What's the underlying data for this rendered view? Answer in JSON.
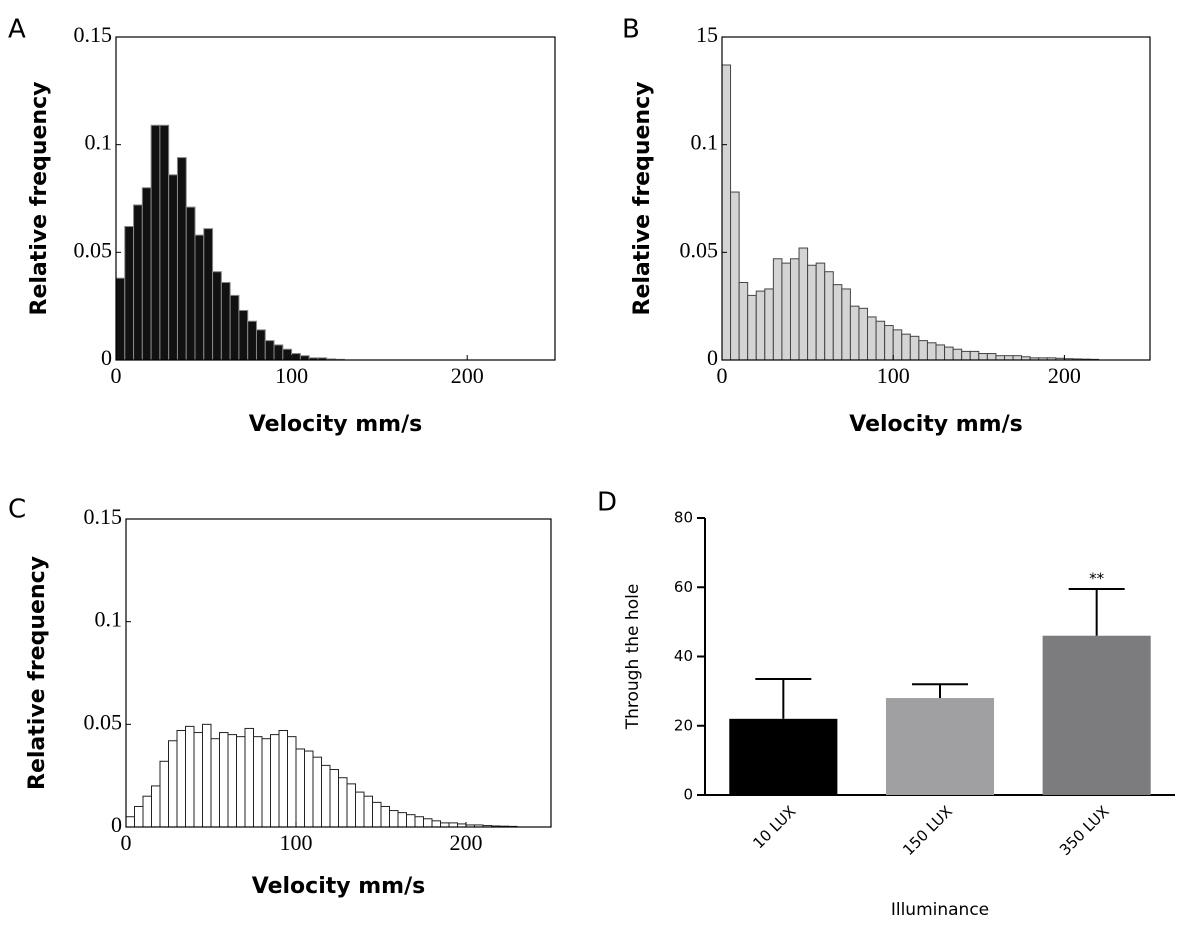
{
  "chart_data": [
    {
      "type": "histogram",
      "panel_label": "A",
      "xlabel": "Velocity mm/s",
      "ylabel": "Relative frequency",
      "bins": [
        0,
        5,
        10,
        15,
        20,
        25,
        30,
        35,
        40,
        45,
        50,
        55,
        60,
        65,
        70,
        75,
        80,
        85,
        90,
        95,
        100,
        105,
        110,
        115,
        120,
        125,
        130
      ],
      "values": [
        0.038,
        0.062,
        0.072,
        0.08,
        0.109,
        0.109,
        0.086,
        0.094,
        0.071,
        0.058,
        0.061,
        0.041,
        0.036,
        0.03,
        0.023,
        0.018,
        0.014,
        0.009,
        0.007,
        0.005,
        0.003,
        0.002,
        0.001,
        0.001,
        0.0005,
        0.0003
      ],
      "color": "#111111",
      "edgecolor": "#888888",
      "xlim": [
        0,
        250
      ],
      "ylim": [
        0,
        0.15
      ],
      "xticks": [
        0,
        100,
        200
      ],
      "yticks": [
        0,
        0.05,
        0.1,
        0.15
      ]
    },
    {
      "type": "histogram",
      "panel_label": "B",
      "xlabel": "Velocity mm/s",
      "ylabel": "Relative frequency",
      "bins": [
        0,
        5,
        10,
        15,
        20,
        25,
        30,
        35,
        40,
        45,
        50,
        55,
        60,
        65,
        70,
        75,
        80,
        85,
        90,
        95,
        100,
        105,
        110,
        115,
        120,
        125,
        130,
        135,
        140,
        145,
        150,
        155,
        160,
        165,
        170,
        175,
        180,
        185,
        190,
        195,
        200,
        205,
        210,
        215,
        220
      ],
      "values": [
        0.137,
        0.078,
        0.036,
        0.03,
        0.032,
        0.033,
        0.047,
        0.045,
        0.047,
        0.052,
        0.044,
        0.045,
        0.041,
        0.035,
        0.033,
        0.025,
        0.024,
        0.02,
        0.018,
        0.016,
        0.014,
        0.012,
        0.011,
        0.009,
        0.008,
        0.007,
        0.006,
        0.005,
        0.004,
        0.004,
        0.003,
        0.003,
        0.002,
        0.002,
        0.002,
        0.0015,
        0.001,
        0.001,
        0.001,
        0.0008,
        0.0006,
        0.0005,
        0.0004,
        0.0003
      ],
      "color": "#d4d4d4",
      "edgecolor": "#444444",
      "xlim": [
        0,
        250
      ],
      "ylim": [
        0,
        0.15
      ],
      "xticks": [
        0,
        100,
        200
      ],
      "yticks": [
        0,
        0.05,
        0.1,
        {
          "value": 0.15,
          "label": "15"
        }
      ]
    },
    {
      "type": "histogram",
      "panel_label": "C",
      "xlabel": "Velocity mm/s",
      "ylabel": "Relative frequency",
      "bins": [
        0,
        5,
        10,
        15,
        20,
        25,
        30,
        35,
        40,
        45,
        50,
        55,
        60,
        65,
        70,
        75,
        80,
        85,
        90,
        95,
        100,
        105,
        110,
        115,
        120,
        125,
        130,
        135,
        140,
        145,
        150,
        155,
        160,
        165,
        170,
        175,
        180,
        185,
        190,
        195,
        200,
        205,
        210,
        215,
        220,
        225,
        230
      ],
      "values": [
        0.005,
        0.01,
        0.015,
        0.02,
        0.032,
        0.042,
        0.047,
        0.049,
        0.046,
        0.05,
        0.043,
        0.046,
        0.045,
        0.044,
        0.048,
        0.044,
        0.043,
        0.045,
        0.047,
        0.044,
        0.038,
        0.037,
        0.034,
        0.03,
        0.028,
        0.024,
        0.021,
        0.017,
        0.015,
        0.012,
        0.01,
        0.008,
        0.007,
        0.006,
        0.005,
        0.004,
        0.003,
        0.002,
        0.002,
        0.0015,
        0.001,
        0.001,
        0.0007,
        0.0005,
        0.0004,
        0.0003
      ],
      "color": "#ffffff",
      "edgecolor": "#222222",
      "xlim": [
        0,
        250
      ],
      "ylim": [
        0,
        0.15
      ],
      "xticks": [
        0,
        100,
        200
      ],
      "yticks": [
        0,
        0.05,
        0.1,
        0.15
      ]
    },
    {
      "type": "bar",
      "panel_label": "D",
      "xlabel": "Illuminance",
      "ylabel": "Through the hole",
      "categories": [
        "10 LUX",
        "150 LUX",
        "350 LUX"
      ],
      "values": [
        22,
        28,
        46
      ],
      "errors": [
        11.5,
        4,
        13.5
      ],
      "significance": [
        null,
        null,
        "**"
      ],
      "colors": [
        "#000000",
        "#a0a0a3",
        "#7c7c7f"
      ],
      "ylim": [
        0,
        80
      ],
      "yticks": [
        0,
        20,
        40,
        60,
        80
      ]
    }
  ]
}
